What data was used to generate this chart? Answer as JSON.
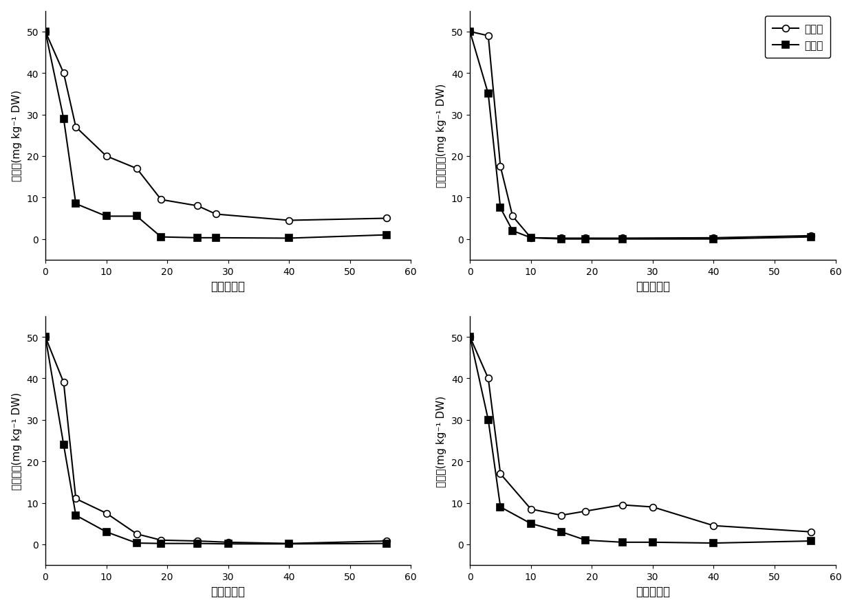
{
  "subplots": [
    {
      "ylabel": "土霉素(mg kg⁻¹ DW)",
      "xlabel": "时间（天）",
      "exp_x": [
        0,
        3,
        5,
        10,
        15,
        19,
        25,
        28,
        40,
        56
      ],
      "exp_y": [
        50,
        29,
        8.5,
        5.5,
        5.5,
        0.5,
        0.3,
        0.3,
        0.2,
        1.0
      ],
      "ctrl_x": [
        0,
        3,
        5,
        10,
        15,
        19,
        25,
        28,
        40,
        56
      ],
      "ctrl_y": [
        50,
        40,
        27,
        20,
        17,
        9.5,
        8,
        6,
        4.5,
        5.0
      ]
    },
    {
      "ylabel": "磺胺甲恶唠(mg kg⁻¹ DW)",
      "xlabel": "时间（天）",
      "exp_x": [
        0,
        3,
        5,
        7,
        10,
        15,
        19,
        25,
        40,
        56
      ],
      "exp_y": [
        50,
        35,
        7.5,
        2.0,
        0.3,
        0.0,
        0.0,
        0.0,
        0.0,
        0.5
      ],
      "ctrl_x": [
        0,
        3,
        5,
        7,
        10,
        15,
        19,
        25,
        40,
        56
      ],
      "ctrl_y": [
        50,
        49,
        17.5,
        5.5,
        0.3,
        0.2,
        0.2,
        0.2,
        0.3,
        0.8
      ]
    },
    {
      "ylabel": "环丙沙星(mg kg⁻¹ DW)",
      "xlabel": "时间（天）",
      "exp_x": [
        0,
        3,
        5,
        10,
        15,
        19,
        25,
        30,
        40,
        56
      ],
      "exp_y": [
        50,
        24,
        7.0,
        3.0,
        0.3,
        0.2,
        0.2,
        0.1,
        0.1,
        0.2
      ],
      "ctrl_x": [
        0,
        3,
        5,
        10,
        15,
        19,
        25,
        30,
        40,
        56
      ],
      "ctrl_y": [
        50,
        39,
        11,
        7.5,
        2.5,
        1.0,
        0.8,
        0.5,
        0.2,
        0.8
      ]
    },
    {
      "ylabel": "红霉素(mg kg⁻¹ DW)",
      "xlabel": "时间（天）",
      "exp_x": [
        0,
        3,
        5,
        10,
        15,
        19,
        25,
        30,
        40,
        56
      ],
      "exp_y": [
        50,
        30,
        9,
        5,
        3,
        1.0,
        0.5,
        0.5,
        0.3,
        0.8
      ],
      "ctrl_x": [
        0,
        3,
        5,
        10,
        15,
        19,
        25,
        30,
        40,
        56
      ],
      "ctrl_y": [
        50,
        40,
        17,
        8.5,
        7.0,
        8.0,
        9.5,
        9.0,
        4.5,
        3.0
      ]
    }
  ],
  "legend_exp": "实验组",
  "legend_ctrl": "对照组",
  "xlim": [
    0,
    60
  ],
  "ylim": [
    -5,
    55
  ],
  "xticks": [
    0,
    10,
    20,
    30,
    40,
    50,
    60
  ],
  "yticks": [
    0,
    10,
    20,
    30,
    40,
    50
  ],
  "background_color": "#ffffff",
  "line_color": "#000000",
  "marker_exp": "s",
  "marker_ctrl": "o",
  "markersize": 7,
  "linewidth": 1.5,
  "markerfacecolor_exp": "#000000",
  "markerfacecolor_ctrl": "#ffffff"
}
